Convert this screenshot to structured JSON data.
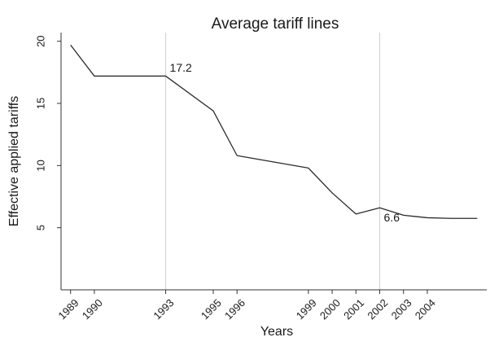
{
  "chart_data": {
    "type": "line",
    "title": "Average tariff lines",
    "xlabel": "Years",
    "ylabel": "Effective applied tariffs",
    "x_ticks": [
      1989,
      1990,
      1993,
      1995,
      1996,
      1999,
      2000,
      2001,
      2002,
      2003,
      2004
    ],
    "y_ticks": [
      5,
      10,
      15,
      20
    ],
    "xlim": [
      1988.6,
      2006.5
    ],
    "ylim": [
      0,
      20.7
    ],
    "grid": false,
    "series": [
      {
        "x": [
          1989,
          1990,
          1993,
          1995,
          1996,
          1999,
          2000,
          2001,
          2002,
          2003,
          2004,
          2005,
          2006.1
        ],
        "y": [
          19.7,
          17.2,
          17.2,
          14.4,
          10.8,
          9.8,
          7.8,
          6.1,
          6.6,
          6.0,
          5.8,
          5.75,
          5.75
        ]
      }
    ],
    "reference_lines_x": [
      1993,
      2002
    ],
    "annotations": [
      {
        "text": "17.2",
        "x": 1993,
        "y": 17.2
      },
      {
        "text": "6.6",
        "x": 2002,
        "y": 6.6
      }
    ],
    "colors": {
      "line": "#2b2b2b",
      "reference": "#cfcfcf",
      "axis": "#333333"
    }
  }
}
